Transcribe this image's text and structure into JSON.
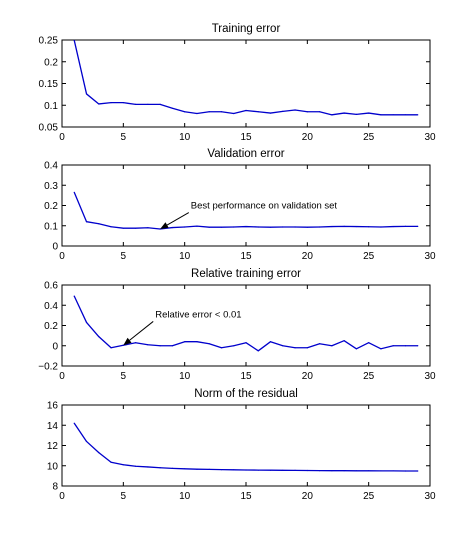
{
  "line_color": "#0000cc",
  "chart_data": [
    {
      "type": "line",
      "title": "Training error",
      "xlabel": "",
      "ylabel": "",
      "xlim": [
        0,
        30
      ],
      "ylim": [
        0.05,
        0.25
      ],
      "xticks": [
        0,
        5,
        10,
        15,
        20,
        25,
        30
      ],
      "yticks": [
        0.05,
        0.1,
        0.15,
        0.2,
        0.25
      ],
      "ytick_labels": [
        "0.05",
        "0.1",
        "0.15",
        "0.2",
        "0.25"
      ],
      "grid": false,
      "x": [
        1,
        2,
        3,
        4,
        5,
        6,
        7,
        8,
        9,
        10,
        11,
        12,
        13,
        14,
        15,
        16,
        17,
        18,
        19,
        20,
        21,
        22,
        23,
        24,
        25,
        26,
        27,
        28,
        29
      ],
      "series": [
        {
          "values": [
            0.249,
            0.126,
            0.103,
            0.106,
            0.106,
            0.102,
            0.102,
            0.102,
            0.093,
            0.085,
            0.081,
            0.085,
            0.085,
            0.081,
            0.088,
            0.085,
            0.082,
            0.086,
            0.089,
            0.085,
            0.085,
            0.078,
            0.082,
            0.079,
            0.082,
            0.078,
            0.078,
            0.078,
            0.078
          ]
        }
      ],
      "annotations": []
    },
    {
      "type": "line",
      "title": "Validation error",
      "xlabel": "",
      "ylabel": "",
      "xlim": [
        0,
        30
      ],
      "ylim": [
        0,
        0.4
      ],
      "xticks": [
        0,
        5,
        10,
        15,
        20,
        25,
        30
      ],
      "yticks": [
        0,
        0.1,
        0.2,
        0.3,
        0.4
      ],
      "ytick_labels": [
        "0",
        "0.1",
        "0.2",
        "0.3",
        "0.4"
      ],
      "grid": false,
      "x": [
        1,
        2,
        3,
        4,
        5,
        6,
        7,
        8,
        9,
        10,
        11,
        12,
        13,
        14,
        15,
        16,
        17,
        18,
        19,
        20,
        21,
        22,
        23,
        24,
        25,
        26,
        27,
        28,
        29
      ],
      "series": [
        {
          "values": [
            0.265,
            0.12,
            0.11,
            0.095,
            0.088,
            0.088,
            0.09,
            0.084,
            0.091,
            0.094,
            0.098,
            0.093,
            0.093,
            0.094,
            0.096,
            0.094,
            0.093,
            0.094,
            0.094,
            0.093,
            0.094,
            0.096,
            0.097,
            0.096,
            0.095,
            0.094,
            0.096,
            0.097,
            0.097
          ]
        }
      ],
      "annotations": [
        {
          "text": "Best performance on validation set",
          "point": [
            8,
            0.084
          ],
          "text_at": [
            10.5,
            0.17
          ]
        }
      ]
    },
    {
      "type": "line",
      "title": "Relative training error",
      "xlabel": "",
      "ylabel": "",
      "xlim": [
        0,
        30
      ],
      "ylim": [
        -0.2,
        0.6
      ],
      "xticks": [
        0,
        5,
        10,
        15,
        20,
        25,
        30
      ],
      "yticks": [
        -0.2,
        0,
        0.2,
        0.4,
        0.6
      ],
      "ytick_labels": [
        "−0.2",
        "0",
        "0.2",
        "0.4",
        "0.6"
      ],
      "grid": false,
      "x": [
        1,
        2,
        3,
        4,
        5,
        6,
        7,
        8,
        9,
        10,
        11,
        12,
        13,
        14,
        15,
        16,
        17,
        18,
        19,
        20,
        21,
        22,
        23,
        24,
        25,
        26,
        27,
        28,
        29
      ],
      "series": [
        {
          "values": [
            0.49,
            0.23,
            0.09,
            -0.02,
            0.005,
            0.03,
            0.01,
            0.0,
            0.0,
            0.04,
            0.04,
            0.02,
            -0.02,
            0.0,
            0.03,
            -0.05,
            0.04,
            0.0,
            -0.02,
            -0.02,
            0.02,
            0.0,
            0.05,
            -0.03,
            0.03,
            -0.03,
            0.0,
            0.0,
            0.0
          ]
        }
      ],
      "annotations": [
        {
          "text": "Relative error < 0.01",
          "point": [
            5,
            0.005
          ],
          "text_at": [
            7.6,
            0.25
          ]
        }
      ]
    },
    {
      "type": "line",
      "title": "Norm of the residual",
      "xlabel": "",
      "ylabel": "",
      "xlim": [
        0,
        30
      ],
      "ylim": [
        8,
        16
      ],
      "xticks": [
        0,
        5,
        10,
        15,
        20,
        25,
        30
      ],
      "yticks": [
        8,
        10,
        12,
        14,
        16
      ],
      "ytick_labels": [
        "8",
        "10",
        "12",
        "14",
        "16"
      ],
      "grid": false,
      "x": [
        1,
        2,
        3,
        4,
        5,
        6,
        7,
        8,
        9,
        10,
        11,
        12,
        13,
        14,
        15,
        16,
        17,
        18,
        19,
        20,
        21,
        22,
        23,
        24,
        25,
        26,
        27,
        28,
        29
      ],
      "series": [
        {
          "values": [
            14.2,
            12.4,
            11.3,
            10.35,
            10.1,
            9.95,
            9.88,
            9.8,
            9.74,
            9.7,
            9.66,
            9.64,
            9.62,
            9.6,
            9.58,
            9.57,
            9.56,
            9.55,
            9.54,
            9.53,
            9.52,
            9.51,
            9.51,
            9.5,
            9.5,
            9.49,
            9.49,
            9.48,
            9.48
          ]
        }
      ],
      "annotations": []
    }
  ]
}
